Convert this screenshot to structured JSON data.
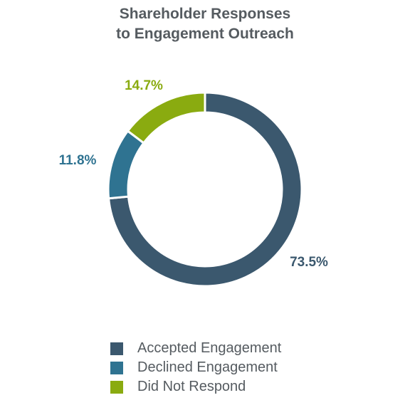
{
  "chart_data": {
    "type": "pie",
    "title": "Shareholder Responses to Engagement Outreach",
    "title_lines": [
      "Shareholder Responses",
      "to Engagement Outreach"
    ],
    "donut": true,
    "slices": [
      {
        "label": "Accepted Engagement",
        "value": 73.5,
        "display": "73.5%",
        "color": "#3b586e"
      },
      {
        "label": "Declined Engagement",
        "value": 11.8,
        "display": "11.8%",
        "color": "#2f7391"
      },
      {
        "label": "Did Not Respond",
        "value": 14.7,
        "display": "14.7%",
        "color": "#8aab10"
      }
    ],
    "legend_position": "bottom"
  }
}
